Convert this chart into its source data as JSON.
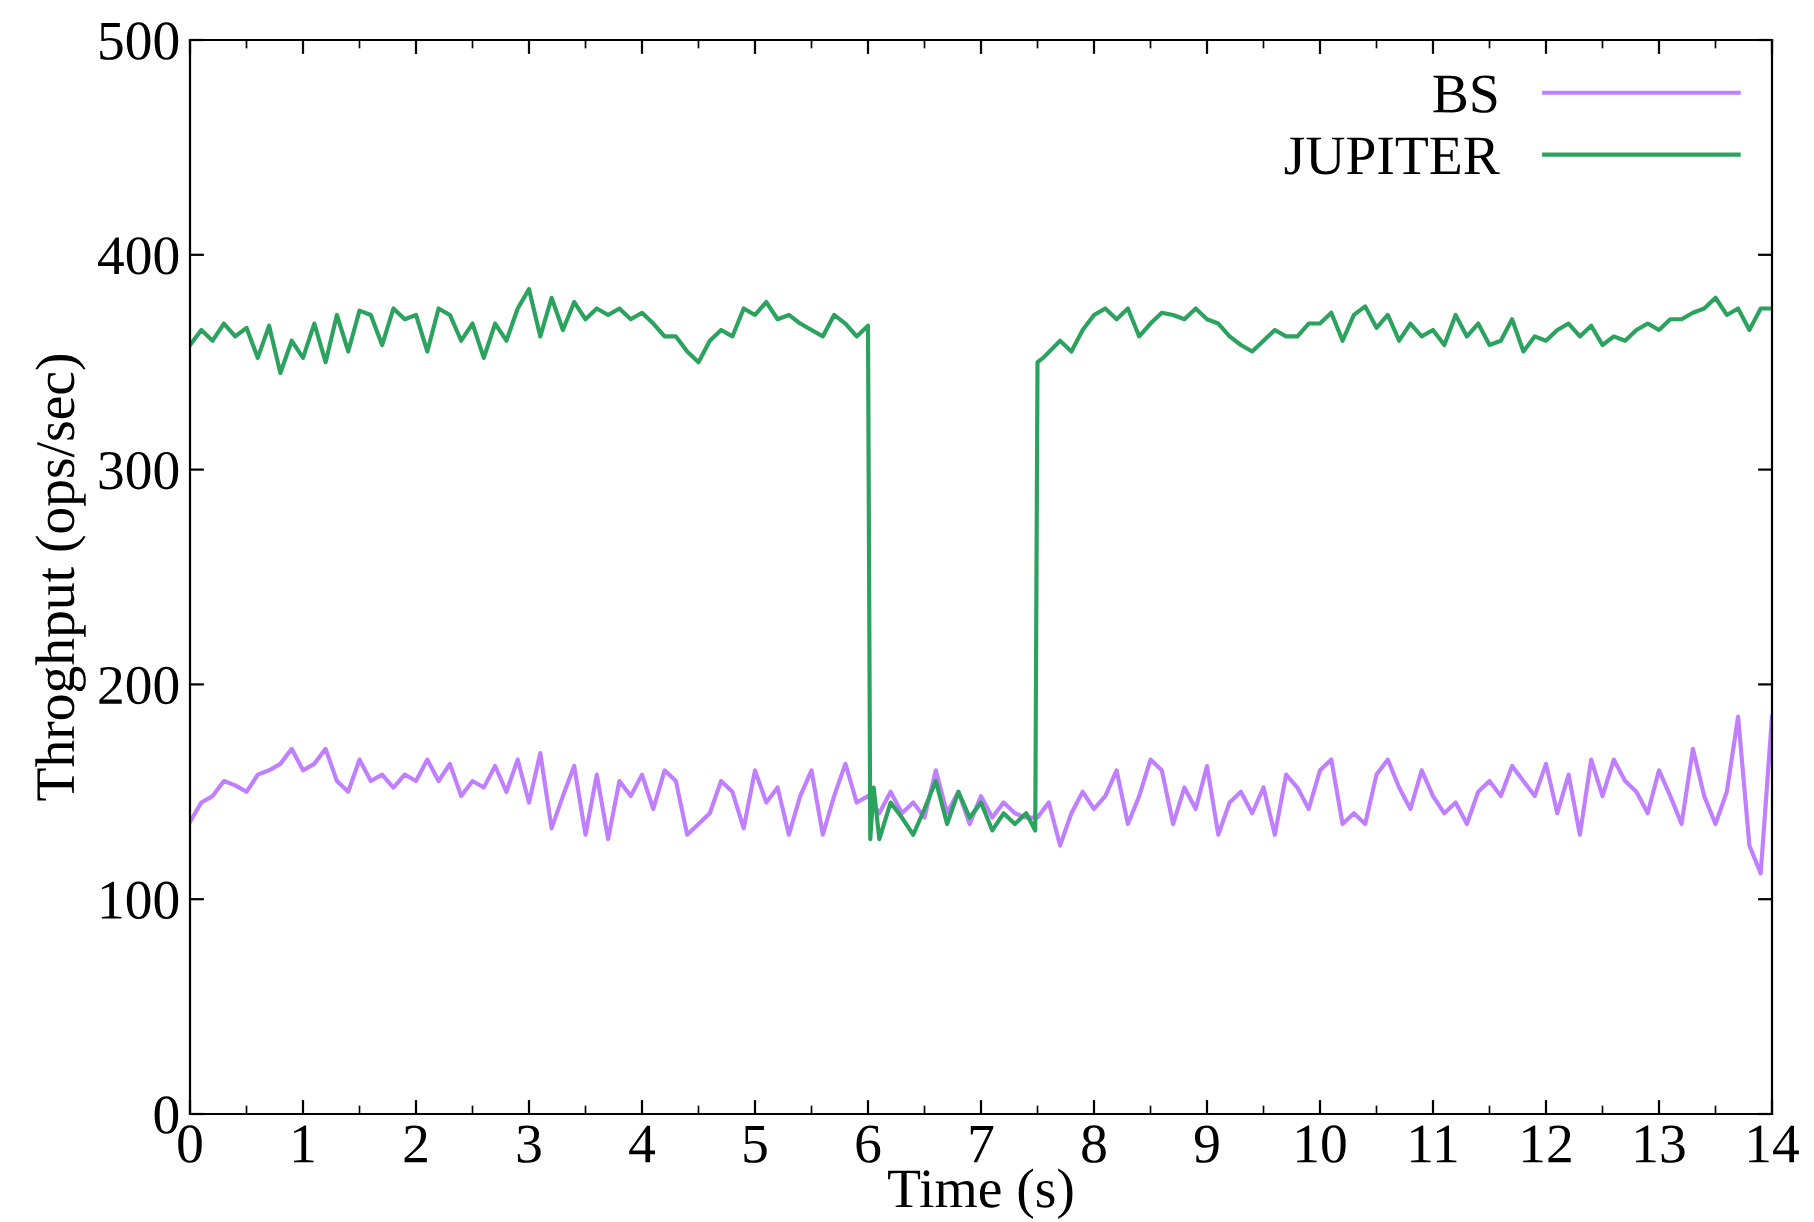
{
  "chart_data": {
    "type": "line",
    "xlabel": "Time (s)",
    "ylabel": "Throghput (ops/sec)",
    "xlim": [
      0,
      14
    ],
    "xticks": [
      0,
      1,
      2,
      3,
      4,
      5,
      6,
      7,
      8,
      9,
      10,
      11,
      12,
      13,
      14
    ],
    "ylim": [
      0,
      500
    ],
    "yticks": [
      0,
      100,
      200,
      300,
      400,
      500
    ],
    "legend": "top right",
    "grid": false,
    "marker": "none",
    "line_style": "solid",
    "series": [
      {
        "name": "BS",
        "color": "#bf7fff",
        "x": [
          0,
          0.1,
          0.2,
          0.3,
          0.4,
          0.5,
          0.6,
          0.7,
          0.8,
          0.9,
          1.0,
          1.1,
          1.2,
          1.3,
          1.4,
          1.5,
          1.6,
          1.7,
          1.8,
          1.9,
          2.0,
          2.1,
          2.2,
          2.3,
          2.4,
          2.5,
          2.6,
          2.7,
          2.8,
          2.9,
          3.0,
          3.1,
          3.2,
          3.3,
          3.4,
          3.5,
          3.6,
          3.7,
          3.8,
          3.9,
          4.0,
          4.1,
          4.2,
          4.3,
          4.4,
          4.5,
          4.6,
          4.7,
          4.8,
          4.9,
          5.0,
          5.1,
          5.2,
          5.3,
          5.4,
          5.5,
          5.6,
          5.7,
          5.8,
          5.9,
          6.0,
          6.1,
          6.2,
          6.3,
          6.4,
          6.5,
          6.6,
          6.7,
          6.8,
          6.9,
          7.0,
          7.1,
          7.2,
          7.3,
          7.4,
          7.5,
          7.6,
          7.7,
          7.8,
          7.9,
          8.0,
          8.1,
          8.2,
          8.3,
          8.4,
          8.5,
          8.6,
          8.7,
          8.8,
          8.9,
          9.0,
          9.1,
          9.2,
          9.3,
          9.4,
          9.5,
          9.6,
          9.7,
          9.8,
          9.9,
          10.0,
          10.1,
          10.2,
          10.3,
          10.4,
          10.5,
          10.6,
          10.7,
          10.8,
          10.9,
          11.0,
          11.1,
          11.2,
          11.3,
          11.4,
          11.5,
          11.6,
          11.7,
          11.8,
          11.9,
          12.0,
          12.1,
          12.2,
          12.3,
          12.4,
          12.5,
          12.6,
          12.7,
          12.8,
          12.9,
          13.0,
          13.1,
          13.2,
          13.3,
          13.4,
          13.5,
          13.6,
          13.7,
          13.8,
          13.9,
          14.0
        ],
        "values": [
          136,
          145,
          148,
          155,
          153,
          150,
          158,
          160,
          163,
          170,
          160,
          163,
          170,
          155,
          150,
          165,
          155,
          158,
          152,
          158,
          155,
          165,
          155,
          163,
          148,
          155,
          152,
          162,
          150,
          165,
          145,
          168,
          133,
          148,
          162,
          130,
          158,
          128,
          155,
          148,
          158,
          142,
          160,
          155,
          130,
          135,
          140,
          155,
          150,
          133,
          160,
          145,
          152,
          130,
          148,
          160,
          130,
          148,
          163,
          145,
          148,
          140,
          150,
          140,
          145,
          138,
          160,
          140,
          150,
          135,
          148,
          138,
          145,
          140,
          138,
          138,
          145,
          125,
          140,
          150,
          142,
          148,
          160,
          135,
          148,
          165,
          160,
          135,
          152,
          142,
          162,
          130,
          145,
          150,
          140,
          152,
          130,
          158,
          152,
          142,
          160,
          165,
          135,
          140,
          135,
          158,
          165,
          152,
          142,
          160,
          148,
          140,
          145,
          135,
          150,
          155,
          148,
          162,
          155,
          148,
          163,
          140,
          158,
          130,
          165,
          148,
          165,
          155,
          150,
          140,
          160,
          148,
          135,
          170,
          148,
          135,
          150,
          185,
          125,
          112,
          185
        ]
      },
      {
        "name": "JUPITER",
        "color": "#2ca25f",
        "x": [
          0,
          0.1,
          0.2,
          0.3,
          0.4,
          0.5,
          0.6,
          0.7,
          0.8,
          0.9,
          1.0,
          1.1,
          1.2,
          1.3,
          1.4,
          1.5,
          1.6,
          1.7,
          1.8,
          1.9,
          2.0,
          2.1,
          2.2,
          2.3,
          2.4,
          2.5,
          2.6,
          2.7,
          2.8,
          2.9,
          3.0,
          3.1,
          3.2,
          3.3,
          3.4,
          3.5,
          3.6,
          3.7,
          3.8,
          3.9,
          4.0,
          4.1,
          4.2,
          4.3,
          4.4,
          4.5,
          4.6,
          4.7,
          4.8,
          4.9,
          5.0,
          5.1,
          5.2,
          5.3,
          5.4,
          5.5,
          5.6,
          5.7,
          5.8,
          5.9,
          6.0,
          6.02,
          6.05,
          6.1,
          6.2,
          6.3,
          6.4,
          6.5,
          6.6,
          6.7,
          6.8,
          6.9,
          7.0,
          7.1,
          7.2,
          7.3,
          7.4,
          7.48,
          7.5,
          7.55,
          7.7,
          7.8,
          7.9,
          8.0,
          8.1,
          8.2,
          8.3,
          8.4,
          8.5,
          8.6,
          8.7,
          8.8,
          8.9,
          9.0,
          9.1,
          9.2,
          9.3,
          9.4,
          9.5,
          9.6,
          9.7,
          9.8,
          9.9,
          10.0,
          10.1,
          10.2,
          10.3,
          10.4,
          10.5,
          10.6,
          10.7,
          10.8,
          10.9,
          11.0,
          11.1,
          11.2,
          11.3,
          11.4,
          11.5,
          11.6,
          11.7,
          11.8,
          11.9,
          12.0,
          12.1,
          12.2,
          12.3,
          12.4,
          12.5,
          12.6,
          12.7,
          12.8,
          12.9,
          13.0,
          13.1,
          13.2,
          13.3,
          13.4,
          13.5,
          13.6,
          13.7,
          13.8,
          13.9,
          14.0
        ],
        "values": [
          358,
          365,
          360,
          368,
          362,
          366,
          352,
          367,
          345,
          360,
          352,
          368,
          350,
          372,
          355,
          374,
          372,
          358,
          375,
          370,
          372,
          355,
          375,
          372,
          360,
          368,
          352,
          368,
          360,
          375,
          384,
          362,
          380,
          365,
          378,
          370,
          375,
          372,
          375,
          370,
          373,
          368,
          362,
          362,
          355,
          350,
          360,
          365,
          362,
          375,
          372,
          378,
          370,
          372,
          368,
          365,
          362,
          372,
          368,
          362,
          367,
          128,
          152,
          128,
          145,
          138,
          130,
          142,
          155,
          135,
          150,
          138,
          145,
          132,
          140,
          135,
          140,
          132,
          350,
          352,
          360,
          355,
          365,
          372,
          375,
          370,
          375,
          362,
          368,
          373,
          372,
          370,
          375,
          370,
          368,
          362,
          358,
          355,
          360,
          365,
          362,
          362,
          368,
          368,
          373,
          360,
          372,
          376,
          366,
          372,
          360,
          368,
          362,
          365,
          358,
          372,
          362,
          368,
          358,
          360,
          370,
          355,
          362,
          360,
          365,
          368,
          362,
          367,
          358,
          362,
          360,
          365,
          368,
          365,
          370,
          370,
          373,
          375,
          380,
          372,
          375,
          365,
          375,
          375
        ]
      }
    ]
  }
}
